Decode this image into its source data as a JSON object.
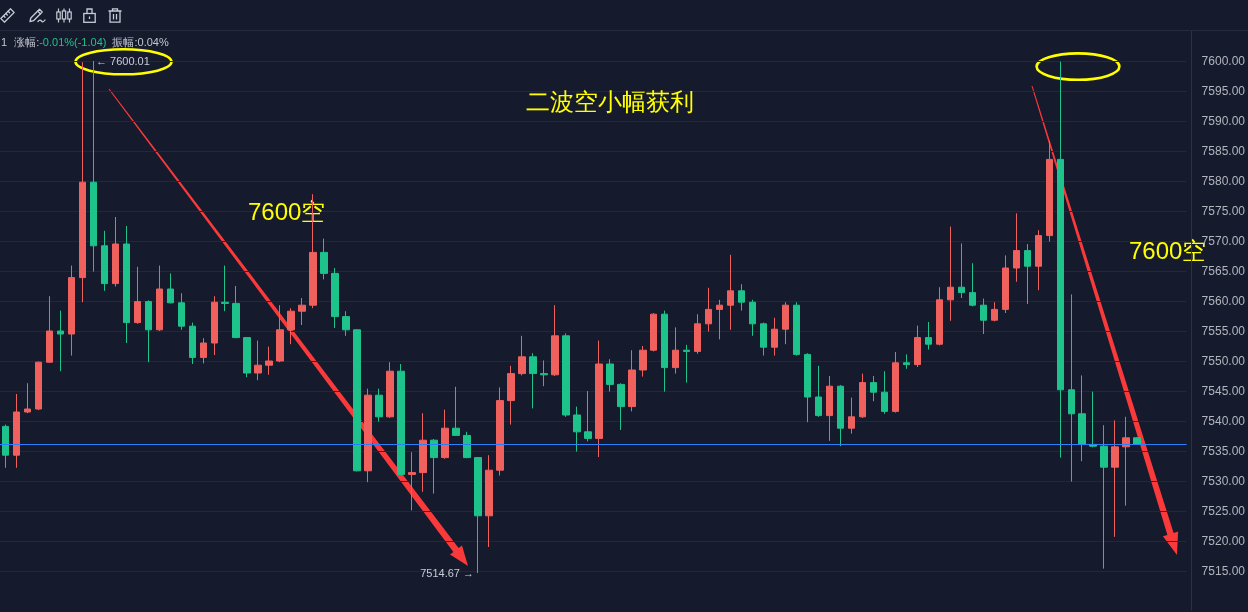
{
  "chart_data": {
    "type": "candlestick",
    "title": "二波空小幅获利",
    "categories": [
      null,
      null,
      null,
      null,
      null,
      null,
      null,
      null,
      null,
      null,
      null,
      null,
      null,
      null,
      null,
      null,
      null,
      null,
      null,
      null,
      null,
      null,
      null,
      null,
      null,
      null,
      null,
      null,
      null,
      null,
      null,
      null,
      null,
      null,
      null,
      null,
      null,
      null,
      null,
      null,
      null,
      null,
      null,
      null,
      null,
      null,
      null,
      null,
      null,
      null,
      null,
      null,
      null,
      null,
      null,
      null,
      null,
      null,
      null,
      null,
      null,
      null,
      null,
      null,
      null,
      null,
      null,
      null,
      null,
      null,
      null,
      null,
      null,
      null,
      null,
      null,
      null,
      null,
      null,
      null,
      null,
      null,
      null,
      null,
      null,
      null,
      null,
      null,
      null,
      null,
      null,
      null,
      null,
      null,
      null,
      null,
      null,
      null,
      null,
      null,
      null,
      null,
      null,
      null,
      null,
      null,
      null,
      null
    ],
    "ohlc": [
      [
        7539.1,
        7539.4,
        7532.2,
        7534.3
      ],
      [
        7534.3,
        7544.5,
        7532.2,
        7541.5
      ],
      [
        7541.5,
        7546.3,
        7541.3,
        7542.0
      ],
      [
        7542.0,
        7549.9,
        7541.8,
        7549.8
      ],
      [
        7549.8,
        7560.8,
        7549.7,
        7555.0
      ],
      [
        7555.0,
        7558.4,
        7548.3,
        7554.5
      ],
      [
        7554.5,
        7565.9,
        7550.9,
        7563.9
      ],
      [
        7563.9,
        7599.8,
        7559.8,
        7579.8
      ],
      [
        7579.8,
        7600.01,
        7564.9,
        7569.2
      ],
      [
        7569.2,
        7571.7,
        7561.7,
        7562.9
      ],
      [
        7562.9,
        7574.0,
        7562.4,
        7569.5
      ],
      [
        7569.5,
        7572.5,
        7553.0,
        7556.4
      ],
      [
        7556.4,
        7565.7,
        7556.2,
        7559.9
      ],
      [
        7559.9,
        7560.1,
        7549.8,
        7555.2
      ],
      [
        7555.2,
        7565.9,
        7555.0,
        7562.0
      ],
      [
        7562.0,
        7564.6,
        7559.6,
        7559.7
      ],
      [
        7559.7,
        7561.3,
        7555.2,
        7555.8
      ],
      [
        7555.8,
        7556.4,
        7549.5,
        7550.6
      ],
      [
        7550.6,
        7553.8,
        7549.6,
        7553.0
      ],
      [
        7553.0,
        7560.8,
        7551.0,
        7559.8
      ],
      [
        7559.8,
        7565.9,
        7558.3,
        7559.6
      ],
      [
        7559.6,
        7562.5,
        7553.8,
        7553.9
      ],
      [
        7553.9,
        7554.0,
        7547.3,
        7548.0
      ],
      [
        7548.0,
        7553.4,
        7546.8,
        7549.3
      ],
      [
        7549.3,
        7552.4,
        7547.7,
        7550.0
      ],
      [
        7550.0,
        7559.3,
        7549.8,
        7555.2
      ],
      [
        7555.2,
        7558.8,
        7552.8,
        7558.3
      ],
      [
        7558.3,
        7560.5,
        7556.0,
        7559.3
      ],
      [
        7559.3,
        7577.8,
        7558.8,
        7568.1
      ],
      [
        7568.1,
        7570.4,
        7563.6,
        7564.6
      ],
      [
        7564.6,
        7565.5,
        7555.5,
        7557.4
      ],
      [
        7557.4,
        7558.3,
        7554.2,
        7555.2
      ],
      [
        7555.2,
        7555.3,
        7531.6,
        7531.7
      ],
      [
        7531.7,
        7545.4,
        7529.8,
        7544.3
      ],
      [
        7544.3,
        7545.4,
        7539.9,
        7540.7
      ],
      [
        7540.7,
        7549.8,
        7540.5,
        7548.3
      ],
      [
        7548.3,
        7549.5,
        7531.0,
        7531.1
      ],
      [
        7531.1,
        7534.8,
        7525.1,
        7531.4
      ],
      [
        7531.4,
        7541.3,
        7528.2,
        7536.8
      ],
      [
        7536.8,
        7537.0,
        7527.9,
        7533.9
      ],
      [
        7533.9,
        7541.9,
        7533.7,
        7538.8
      ],
      [
        7538.8,
        7545.7,
        7537.5,
        7537.6
      ],
      [
        7537.6,
        7538.2,
        7533.8,
        7533.9
      ],
      [
        7533.9,
        7534.0,
        7514.67,
        7524.2
      ],
      [
        7524.2,
        7534.3,
        7519.0,
        7531.8
      ],
      [
        7531.8,
        7545.6,
        7530.9,
        7543.4
      ],
      [
        7543.4,
        7549.2,
        7539.4,
        7547.9
      ],
      [
        7547.9,
        7554.2,
        7547.6,
        7550.7
      ],
      [
        7550.7,
        7551.3,
        7542.1,
        7547.9
      ],
      [
        7547.9,
        7550.1,
        7545.8,
        7547.7
      ],
      [
        7547.7,
        7559.3,
        7547.5,
        7554.2
      ],
      [
        7554.2,
        7554.6,
        7540.7,
        7541.0
      ],
      [
        7541.0,
        7542.4,
        7534.9,
        7538.2
      ],
      [
        7538.2,
        7545.0,
        7536.6,
        7537.1
      ],
      [
        7537.1,
        7553.4,
        7534.0,
        7549.5
      ],
      [
        7549.5,
        7550.3,
        7544.9,
        7546.1
      ],
      [
        7546.1,
        7546.3,
        7538.5,
        7542.4
      ],
      [
        7542.4,
        7551.8,
        7541.6,
        7548.5
      ],
      [
        7548.5,
        7552.5,
        7547.4,
        7551.8
      ],
      [
        7551.8,
        7558.0,
        7551.6,
        7557.8
      ],
      [
        7557.8,
        7558.4,
        7544.9,
        7548.9
      ],
      [
        7548.9,
        7555.6,
        7547.9,
        7551.8
      ],
      [
        7551.8,
        7552.7,
        7546.4,
        7551.6
      ],
      [
        7551.6,
        7557.8,
        7551.2,
        7556.2
      ],
      [
        7556.2,
        7562.2,
        7554.9,
        7558.6
      ],
      [
        7558.6,
        7560.2,
        7553.6,
        7559.3
      ],
      [
        7559.3,
        7567.7,
        7555.2,
        7561.7
      ],
      [
        7561.7,
        7562.8,
        7558.4,
        7559.8
      ],
      [
        7559.8,
        7560.2,
        7554.2,
        7556.2
      ],
      [
        7556.2,
        7556.4,
        7550.9,
        7552.3
      ],
      [
        7552.3,
        7557.2,
        7550.9,
        7555.3
      ],
      [
        7555.3,
        7559.8,
        7552.8,
        7559.3
      ],
      [
        7559.3,
        7559.8,
        7550.9,
        7551.1
      ],
      [
        7551.1,
        7551.3,
        7539.8,
        7544.0
      ],
      [
        7544.0,
        7549.2,
        7540.7,
        7540.9
      ],
      [
        7540.9,
        7547.5,
        7536.7,
        7545.8
      ],
      [
        7545.8,
        7546.0,
        7535.8,
        7538.8
      ],
      [
        7538.8,
        7543.9,
        7537.9,
        7540.7
      ],
      [
        7540.7,
        7547.9,
        7540.5,
        7546.4
      ],
      [
        7546.4,
        7547.5,
        7543.3,
        7544.8
      ],
      [
        7544.8,
        7548.3,
        7541.2,
        7541.6
      ],
      [
        7541.6,
        7551.5,
        7541.4,
        7549.7
      ],
      [
        7549.7,
        7551.1,
        7548.7,
        7549.4
      ],
      [
        7549.4,
        7555.9,
        7549.0,
        7553.9
      ],
      [
        7553.9,
        7556.5,
        7551.9,
        7552.8
      ],
      [
        7552.8,
        7562.3,
        7552.6,
        7560.2
      ],
      [
        7560.2,
        7572.4,
        7556.7,
        7562.3
      ],
      [
        7562.3,
        7569.6,
        7560.5,
        7561.4
      ],
      [
        7561.4,
        7566.3,
        7559.1,
        7559.3
      ],
      [
        7559.3,
        7560.4,
        7554.5,
        7556.8
      ],
      [
        7556.8,
        7559.8,
        7556.6,
        7558.6
      ],
      [
        7558.6,
        7567.6,
        7558.0,
        7565.5
      ],
      [
        7565.5,
        7574.6,
        7563.2,
        7568.4
      ],
      [
        7568.4,
        7569.5,
        7559.5,
        7565.8
      ],
      [
        7565.8,
        7571.8,
        7561.8,
        7570.9
      ],
      [
        7570.9,
        7586.7,
        7569.9,
        7583.6
      ],
      [
        7583.6,
        7599.9,
        7533.9,
        7545.2
      ],
      [
        7545.2,
        7561.1,
        7529.9,
        7541.2
      ],
      [
        7541.2,
        7547.6,
        7533.3,
        7536.1
      ],
      [
        7536.1,
        7544.9,
        7535.6,
        7535.8
      ],
      [
        7535.8,
        7539.3,
        7515.4,
        7532.3
      ],
      [
        7532.3,
        7540.1,
        7520.7,
        7535.7
      ],
      [
        7535.7,
        7540.7,
        7525.9,
        7537.2
      ],
      [
        7537.2,
        7537.3,
        7536.0,
        7536.1
      ],
      null,
      null,
      null,
      null
    ],
    "colors": [
      "#1ec28b",
      "#f0605d",
      "#f0605d",
      "#f0605d",
      "#f0605d",
      "#1ec28b",
      "#f0605d",
      "#f0605d",
      "#1ec28b",
      "#1ec28b",
      "#f0605d",
      "#1ec28b",
      "#f0605d",
      "#1ec28b",
      "#f0605d",
      "#1ec28b",
      "#1ec28b",
      "#1ec28b",
      "#f0605d",
      "#f0605d",
      "#1ec28b",
      "#1ec28b",
      "#1ec28b",
      "#f0605d",
      "#f0605d",
      "#f0605d",
      "#f0605d",
      "#f0605d",
      "#f0605d",
      "#1ec28b",
      "#1ec28b",
      "#1ec28b",
      "#1ec28b",
      "#f0605d",
      "#1ec28b",
      "#f0605d",
      "#1ec28b",
      "#f0605d",
      "#f0605d",
      "#1ec28b",
      "#f0605d",
      "#1ec28b",
      "#1ec28b",
      "#1ec28b",
      "#f0605d",
      "#f0605d",
      "#f0605d",
      "#f0605d",
      "#1ec28b",
      "#1ec28b",
      "#f0605d",
      "#1ec28b",
      "#1ec28b",
      "#1ec28b",
      "#f0605d",
      "#1ec28b",
      "#1ec28b",
      "#f0605d",
      "#f0605d",
      "#f0605d",
      "#1ec28b",
      "#f0605d",
      "#1ec28b",
      "#f0605d",
      "#f0605d",
      "#f0605d",
      "#f0605d",
      "#1ec28b",
      "#1ec28b",
      "#1ec28b",
      "#f0605d",
      "#f0605d",
      "#1ec28b",
      "#1ec28b",
      "#1ec28b",
      "#f0605d",
      "#1ec28b",
      "#f0605d",
      "#f0605d",
      "#1ec28b",
      "#1ec28b",
      "#f0605d",
      "#1ec28b",
      "#f0605d",
      "#1ec28b",
      "#f0605d",
      "#f0605d",
      "#1ec28b",
      "#1ec28b",
      "#1ec28b",
      "#f0605d",
      "#f0605d",
      "#f0605d",
      "#1ec28b",
      "#f0605d",
      "#f0605d",
      "#1ec28b",
      "#1ec28b",
      "#1ec28b",
      "#1ec28b",
      "#1ec28b",
      "#f0605d",
      "#f0605d",
      "#1ec28b",
      null,
      null,
      null,
      null
    ],
    "ylim": [
      7508.5,
      7605
    ],
    "yticks": [
      {
        "value": 7515,
        "label": "7515.00"
      },
      {
        "value": 7520,
        "label": "7520.00"
      },
      {
        "value": 7525,
        "label": "7525.00"
      },
      {
        "value": 7530,
        "label": "7530.00"
      },
      {
        "value": 7535,
        "label": "7535.00"
      },
      {
        "value": 7540,
        "label": "7540.00"
      },
      {
        "value": 7545,
        "label": "7545.00"
      },
      {
        "value": 7550,
        "label": "7550.00"
      },
      {
        "value": 7555,
        "label": "7555.00"
      },
      {
        "value": 7560,
        "label": "7560.00"
      },
      {
        "value": 7565,
        "label": "7565.00"
      },
      {
        "value": 7570,
        "label": "7570.00"
      },
      {
        "value": 7575,
        "label": "7575.00"
      },
      {
        "value": 7580,
        "label": "7580.00"
      },
      {
        "value": 7585,
        "label": "7585.00"
      },
      {
        "value": 7590,
        "label": "7590.00"
      },
      {
        "value": 7595,
        "label": "7595.00"
      },
      {
        "value": 7600,
        "label": "7600.00"
      }
    ],
    "tick_labels": "y",
    "grid": "y",
    "ref_lines": [
      {
        "axis": "y",
        "value": 7536.1,
        "color": "#2a7fff"
      }
    ],
    "annotations": [
      "1",
      "涨幅:",
      "-0.01%(-1.04)",
      "振幅:0.04%",
      "7600空",
      "7600空",
      "← 7600.01",
      "7514.67 →"
    ]
  }
}
